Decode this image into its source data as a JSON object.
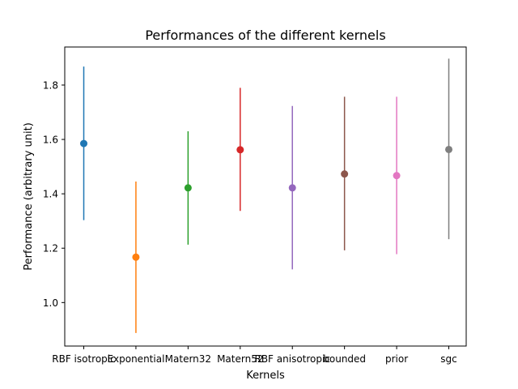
{
  "chart_data": {
    "type": "errorbar",
    "title": "Performances of the different kernels",
    "xlabel": "Kernels",
    "ylabel": "Performance (arbitrary unit)",
    "ylim": [
      0.84,
      1.94
    ],
    "yticks": [
      1.0,
      1.2,
      1.4,
      1.6,
      1.8
    ],
    "ytick_labels": [
      "1.0",
      "1.2",
      "1.4",
      "1.6",
      "1.8"
    ],
    "grid": false,
    "legend": "none",
    "categories": [
      "RBF isotropic",
      "Exponential",
      "Matern32",
      "Matern52",
      "RBF anisotropic",
      "bounded",
      "prior",
      "sgc"
    ],
    "values": [
      1.585,
      1.167,
      1.422,
      1.562,
      1.422,
      1.473,
      1.467,
      1.563
    ],
    "lower": [
      1.303,
      0.888,
      1.213,
      1.337,
      1.122,
      1.192,
      1.178,
      1.233
    ],
    "upper": [
      1.868,
      1.445,
      1.63,
      1.79,
      1.723,
      1.757,
      1.757,
      1.897
    ],
    "colors": [
      "#1f77b4",
      "#ff7f0e",
      "#2ca02c",
      "#d62728",
      "#9467bd",
      "#8c564b",
      "#e377c2",
      "#7f7f7f"
    ]
  }
}
